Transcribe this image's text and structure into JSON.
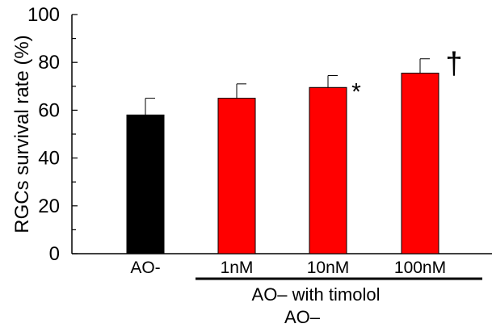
{
  "chart_data": {
    "type": "bar",
    "categories": [
      "AO-",
      "1nM",
      "10nM",
      "100nM"
    ],
    "series": [
      {
        "values": [
          58,
          65,
          69.5,
          75.5
        ],
        "errors": [
          7,
          6,
          5,
          6
        ],
        "colors": [
          "#000000",
          "#ff0000",
          "#ff0000",
          "#ff0000"
        ]
      }
    ],
    "annotations": [
      "",
      "",
      "*",
      "†"
    ],
    "ylabel": "RGCs survival rate (%)",
    "xlabel": "",
    "group_label": "AO– with timolol",
    "sub_label": "AO–",
    "ylim": [
      0,
      100
    ],
    "yticks": [
      0,
      20,
      40,
      60,
      80,
      100
    ],
    "grid": false,
    "legend": "none"
  }
}
